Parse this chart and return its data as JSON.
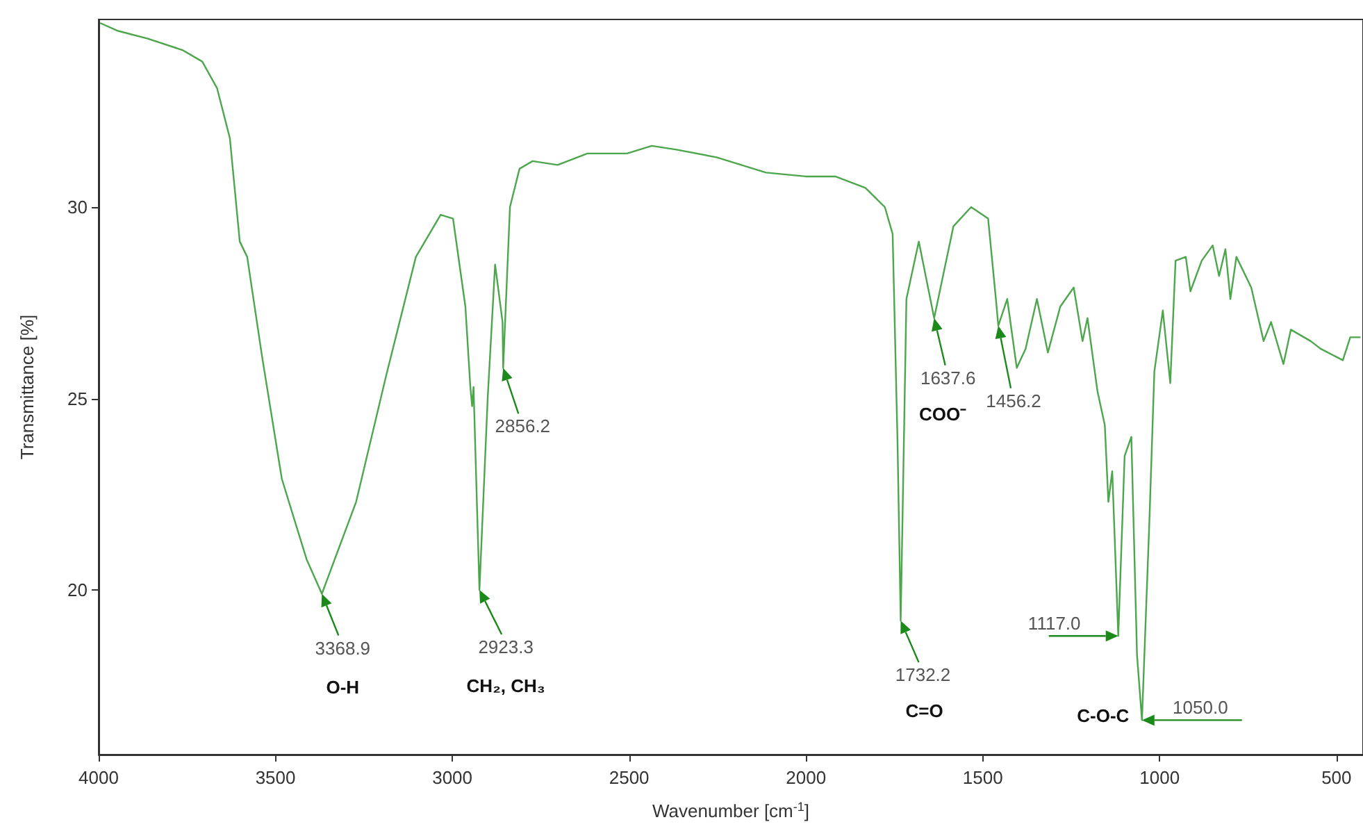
{
  "chart_data": {
    "type": "line",
    "xlabel": "Wavenumber [cm$^{-1}$]",
    "ylabel": "Transmittance [%]",
    "xlim": [
      4000,
      425
    ],
    "xticks": [
      4000,
      3500,
      3000,
      2500,
      2000,
      1500,
      1000,
      500
    ],
    "ylim": [
      15.7,
      34.9
    ],
    "yticks": [
      20,
      25,
      30
    ],
    "marker": "none",
    "series": [
      {
        "color": "#4ca64c",
        "x": [
          3994,
          3945,
          3861,
          3763,
          3707,
          3665,
          3629,
          3601,
          3580,
          3538,
          3482,
          3412,
          3368.9,
          3272,
          3187,
          3103,
          3033,
          2998,
          2963,
          2949,
          2944,
          2940,
          2923.3,
          2900,
          2879,
          2858,
          2856.2,
          2837,
          2810,
          2773,
          2702,
          2618,
          2506,
          2436,
          2366,
          2253,
          2113,
          2001,
          1917,
          1832,
          1777,
          1755,
          1741,
          1732.2,
          1716,
          1681,
          1637.6,
          1583,
          1533,
          1485,
          1463,
          1456.2,
          1431,
          1404,
          1379,
          1347,
          1316,
          1281,
          1243,
          1218,
          1204,
          1176,
          1155,
          1145,
          1134,
          1117,
          1099,
          1080,
          1064,
          1050,
          1029,
          1015,
          991,
          970,
          955,
          926,
          913,
          881,
          850,
          832,
          814,
          800,
          783,
          741,
          706,
          685,
          650,
          629,
          573,
          545,
          482,
          461,
          434
        ],
        "values": [
          34.8,
          34.6,
          34.4,
          34.1,
          33.8,
          33.1,
          31.8,
          29.1,
          28.7,
          26.1,
          22.9,
          20.8,
          19.9,
          22.3,
          25.6,
          28.7,
          29.8,
          29.7,
          27.4,
          25.3,
          24.8,
          25.3,
          20.0,
          25.0,
          28.5,
          27.0,
          25.8,
          30.0,
          31.0,
          31.2,
          31.1,
          31.4,
          31.4,
          31.6,
          31.5,
          31.3,
          30.9,
          30.8,
          30.8,
          30.5,
          30.0,
          29.3,
          23.8,
          19.2,
          27.6,
          29.1,
          27.1,
          29.5,
          30.0,
          29.7,
          27.6,
          26.9,
          27.6,
          25.8,
          26.3,
          27.6,
          26.2,
          27.4,
          27.9,
          26.5,
          27.1,
          25.2,
          24.3,
          22.3,
          23.1,
          18.8,
          23.5,
          24.0,
          18.3,
          16.6,
          21.8,
          25.7,
          27.3,
          25.4,
          28.6,
          28.7,
          27.8,
          28.6,
          29.0,
          28.2,
          28.9,
          27.6,
          28.7,
          27.9,
          26.5,
          27.0,
          25.9,
          26.8,
          26.5,
          26.3,
          26.0,
          26.6,
          26.6
        ]
      }
    ],
    "annotations": [
      {
        "text": "3368.9",
        "x": 3368.9,
        "y": 19.9
      },
      {
        "text": "2923.3",
        "x": 2923.3,
        "y": 20.0
      },
      {
        "text": "2856.2",
        "x": 2856.2,
        "y": 25.8
      },
      {
        "text": "1732.2",
        "x": 1732.2,
        "y": 19.2
      },
      {
        "text": "1637.6",
        "x": 1637.6,
        "y": 27.1
      },
      {
        "text": "1456.2",
        "x": 1456.2,
        "y": 26.9
      },
      {
        "text": "1117.0",
        "x": 1117.0,
        "y": 18.8
      },
      {
        "text": "1050.0",
        "x": 1050.0,
        "y": 16.6
      },
      "O-H",
      "CH₂, CH₃",
      "C=O",
      "COO⁻",
      "C-O-C"
    ]
  }
}
